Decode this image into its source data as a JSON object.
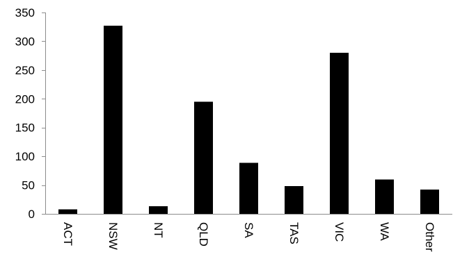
{
  "chart_data": {
    "type": "bar",
    "title": "",
    "xlabel": "",
    "ylabel": "",
    "categories": [
      "ACT",
      "NSW",
      "NT",
      "QLD",
      "SA",
      "TAS",
      "VIC",
      "WA",
      "Other"
    ],
    "values": [
      8,
      327,
      13,
      195,
      89,
      48,
      280,
      60,
      42
    ],
    "ylim": [
      0,
      350
    ],
    "yticks": [
      0,
      50,
      100,
      150,
      200,
      250,
      300,
      350
    ],
    "grid": false,
    "legend": "none",
    "x_tick_rotation": "vertical",
    "bar_color": "#000000",
    "axis_color": "#8c8c8c"
  }
}
